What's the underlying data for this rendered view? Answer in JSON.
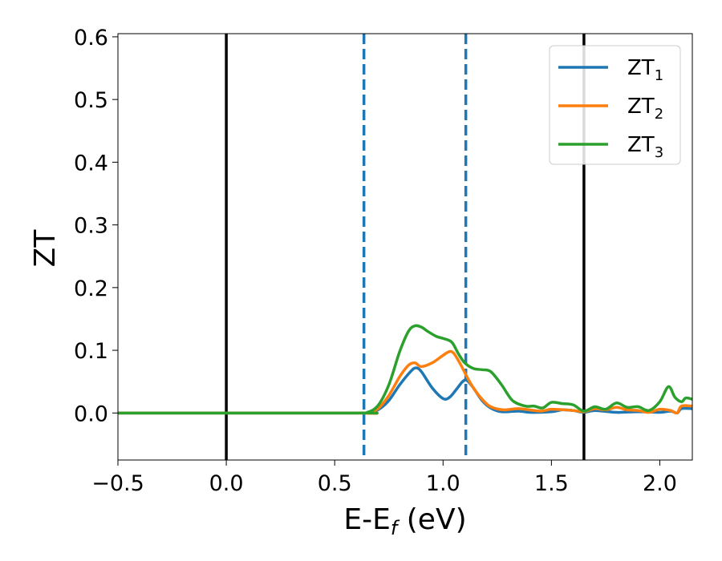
{
  "chart_data": {
    "type": "line",
    "title": "",
    "xlabel": {
      "main": "E-E",
      "sub": "f",
      "unit": " (eV)"
    },
    "ylabel": "ZT",
    "xlim": [
      -0.5,
      2.15
    ],
    "ylim": [
      -0.075,
      0.605
    ],
    "x_ticks": [
      -0.5,
      0.0,
      0.5,
      1.0,
      1.5,
      2.0
    ],
    "x_tick_labels": [
      "−0.5",
      "0.0",
      "0.5",
      "1.0",
      "1.5",
      "2.0"
    ],
    "y_ticks": [
      0.0,
      0.1,
      0.2,
      0.3,
      0.4,
      0.5,
      0.6
    ],
    "y_tick_labels": [
      "0.0",
      "0.1",
      "0.2",
      "0.3",
      "0.4",
      "0.5",
      "0.6"
    ],
    "grid": false,
    "legend_position": "top-right",
    "vertical_lines": [
      {
        "x": 0.0,
        "style": "solid",
        "color": "#000000"
      },
      {
        "x": 1.65,
        "style": "solid",
        "color": "#000000"
      },
      {
        "x": 0.635,
        "style": "dashed",
        "color": "#1f77b4"
      },
      {
        "x": 1.105,
        "style": "dashed",
        "color": "#1f77b4"
      }
    ],
    "series": [
      {
        "name": {
          "main": "ZT",
          "sub": "1"
        },
        "color": "#1f77b4",
        "points": [
          [
            -0.5,
            0
          ],
          [
            0.6,
            0
          ],
          [
            0.65,
            0
          ],
          [
            0.7,
            0.005
          ],
          [
            0.75,
            0.02
          ],
          [
            0.8,
            0.045
          ],
          [
            0.85,
            0.066
          ],
          [
            0.875,
            0.072
          ],
          [
            0.9,
            0.066
          ],
          [
            0.95,
            0.04
          ],
          [
            1.0,
            0.023
          ],
          [
            1.03,
            0.025
          ],
          [
            1.06,
            0.037
          ],
          [
            1.09,
            0.05
          ],
          [
            1.11,
            0.052
          ],
          [
            1.14,
            0.04
          ],
          [
            1.18,
            0.02
          ],
          [
            1.22,
            0.008
          ],
          [
            1.27,
            0.002
          ],
          [
            1.35,
            0.003
          ],
          [
            1.4,
            0.001
          ],
          [
            1.5,
            0.002
          ],
          [
            1.55,
            0.005
          ],
          [
            1.6,
            0.004
          ],
          [
            1.65,
            0.001
          ],
          [
            1.7,
            0.004
          ],
          [
            1.8,
            0.001
          ],
          [
            1.9,
            0.002
          ],
          [
            2.0,
            0.001
          ],
          [
            2.05,
            0.003
          ],
          [
            2.08,
            0.0
          ],
          [
            2.1,
            0.007
          ],
          [
            2.15,
            0.007
          ]
        ]
      },
      {
        "name": {
          "main": "ZT",
          "sub": "2"
        },
        "color": "#ff7f0e",
        "points": [
          [
            -0.5,
            0
          ],
          [
            0.6,
            0
          ],
          [
            0.65,
            0
          ],
          [
            0.7,
            0.007
          ],
          [
            0.75,
            0.028
          ],
          [
            0.8,
            0.058
          ],
          [
            0.84,
            0.076
          ],
          [
            0.87,
            0.08
          ],
          [
            0.9,
            0.074
          ],
          [
            0.95,
            0.08
          ],
          [
            1.0,
            0.092
          ],
          [
            1.03,
            0.098
          ],
          [
            1.05,
            0.095
          ],
          [
            1.08,
            0.078
          ],
          [
            1.11,
            0.058
          ],
          [
            1.14,
            0.04
          ],
          [
            1.18,
            0.022
          ],
          [
            1.22,
            0.01
          ],
          [
            1.28,
            0.005
          ],
          [
            1.35,
            0.007
          ],
          [
            1.45,
            0.003
          ],
          [
            1.5,
            0.006
          ],
          [
            1.6,
            0.004
          ],
          [
            1.65,
            0.002
          ],
          [
            1.7,
            0.007
          ],
          [
            1.75,
            0.005
          ],
          [
            1.8,
            0.009
          ],
          [
            1.85,
            0.005
          ],
          [
            1.9,
            0.004
          ],
          [
            1.95,
            0.001
          ],
          [
            2.0,
            0.006
          ],
          [
            2.05,
            0.004
          ],
          [
            2.08,
            0.0
          ],
          [
            2.1,
            0.011
          ],
          [
            2.15,
            0.011
          ]
        ]
      },
      {
        "name": {
          "main": "ZT",
          "sub": "3"
        },
        "color": "#2ca02c",
        "points": [
          [
            -0.5,
            0
          ],
          [
            0.6,
            0
          ],
          [
            0.65,
            0.001
          ],
          [
            0.7,
            0.012
          ],
          [
            0.75,
            0.045
          ],
          [
            0.8,
            0.098
          ],
          [
            0.84,
            0.13
          ],
          [
            0.87,
            0.139
          ],
          [
            0.9,
            0.137
          ],
          [
            0.93,
            0.13
          ],
          [
            0.97,
            0.122
          ],
          [
            1.0,
            0.119
          ],
          [
            1.04,
            0.113
          ],
          [
            1.07,
            0.095
          ],
          [
            1.1,
            0.08
          ],
          [
            1.14,
            0.071
          ],
          [
            1.18,
            0.069
          ],
          [
            1.22,
            0.066
          ],
          [
            1.27,
            0.045
          ],
          [
            1.32,
            0.02
          ],
          [
            1.38,
            0.011
          ],
          [
            1.42,
            0.011
          ],
          [
            1.46,
            0.008
          ],
          [
            1.5,
            0.017
          ],
          [
            1.55,
            0.015
          ],
          [
            1.6,
            0.013
          ],
          [
            1.65,
            0.003
          ],
          [
            1.7,
            0.01
          ],
          [
            1.75,
            0.006
          ],
          [
            1.8,
            0.016
          ],
          [
            1.85,
            0.009
          ],
          [
            1.9,
            0.01
          ],
          [
            1.95,
            0.004
          ],
          [
            2.0,
            0.018
          ],
          [
            2.04,
            0.042
          ],
          [
            2.07,
            0.025
          ],
          [
            2.1,
            0.018
          ],
          [
            2.12,
            0.024
          ],
          [
            2.15,
            0.022
          ]
        ]
      }
    ]
  }
}
